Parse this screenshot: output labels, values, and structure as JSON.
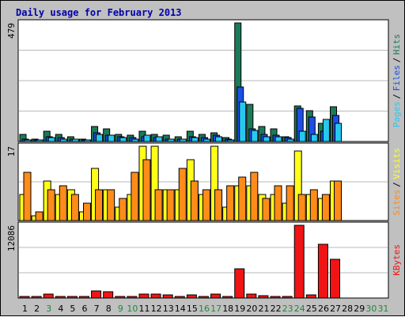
{
  "chart_data": {
    "type": "bar",
    "title": "Daily usage for February 2013",
    "categories": [
      "1",
      "2",
      "3",
      "4",
      "5",
      "6",
      "7",
      "8",
      "9",
      "10",
      "11",
      "12",
      "13",
      "14",
      "15",
      "16",
      "17",
      "18",
      "19",
      "20",
      "21",
      "22",
      "23",
      "24",
      "25",
      "26",
      "27",
      "28",
      "29",
      "30",
      "31"
    ],
    "weekend_days": [
      "3",
      "9",
      "10",
      "16",
      "17",
      "23",
      "24",
      "30",
      "31"
    ],
    "panels": [
      {
        "id": "top",
        "max_label": "479",
        "ymax": 479,
        "right_labels": [
          "Pages",
          "Files",
          "Hits"
        ],
        "series": [
          {
            "name": "Hits",
            "color": "#1b7a5a",
            "values": [
              30,
              10,
              40,
              30,
              20,
              10,
              60,
              50,
              30,
              25,
              40,
              30,
              25,
              20,
              40,
              30,
              35,
              15,
              479,
              150,
              60,
              50,
              20,
              145,
              125,
              75,
              140,
              0,
              0,
              0,
              0
            ]
          },
          {
            "name": "Files",
            "color": "#1d4fe6",
            "values": [
              10,
              5,
              20,
              15,
              10,
              5,
              35,
              25,
              20,
              15,
              20,
              15,
              10,
              10,
              20,
              15,
              25,
              8,
              220,
              50,
              30,
              25,
              15,
              135,
              100,
              40,
              105,
              0,
              0,
              0,
              0
            ]
          },
          {
            "name": "Pages",
            "color": "#27c8f0",
            "values": [
              5,
              3,
              15,
              10,
              8,
              3,
              30,
              25,
              15,
              10,
              25,
              20,
              10,
              8,
              15,
              10,
              20,
              5,
              160,
              45,
              20,
              20,
              10,
              40,
              30,
              90,
              75,
              0,
              0,
              0,
              0
            ]
          }
        ]
      },
      {
        "id": "mid",
        "max_label": "17",
        "ymax": 17,
        "right_labels": [
          "Sites",
          "Visits"
        ],
        "series": [
          {
            "name": "Visits",
            "color": "#ffff19",
            "values": [
              6,
              1,
              9,
              6,
              7,
              2,
              12,
              7,
              3,
              6,
              17,
              17,
              7,
              7,
              14,
              6,
              17,
              3,
              8,
              8,
              6,
              6,
              4,
              16,
              6,
              5,
              9,
              0,
              0,
              0,
              0
            ]
          },
          {
            "name": "Sites",
            "color": "#ff8c19",
            "values": [
              11,
              2,
              7,
              8,
              6,
              4,
              7,
              7,
              5,
              11,
              14,
              7,
              7,
              12,
              9,
              7,
              7,
              8,
              10,
              11,
              5,
              8,
              8,
              6,
              7,
              6,
              9,
              0,
              0,
              0,
              0
            ]
          }
        ]
      },
      {
        "id": "bot",
        "max_label": "12086",
        "ymax": 12086,
        "right_labels": [
          "KBytes"
        ],
        "series": [
          {
            "name": "KBytes",
            "color": "#f01414",
            "values": [
              100,
              150,
              650,
              100,
              100,
              100,
              1200,
              1100,
              100,
              200,
              600,
              650,
              500,
              250,
              500,
              300,
              600,
              250,
              4900,
              650,
              400,
              300,
              300,
              12086,
              550,
              8900,
              6500,
              0,
              0,
              0,
              0
            ]
          }
        ]
      }
    ]
  }
}
